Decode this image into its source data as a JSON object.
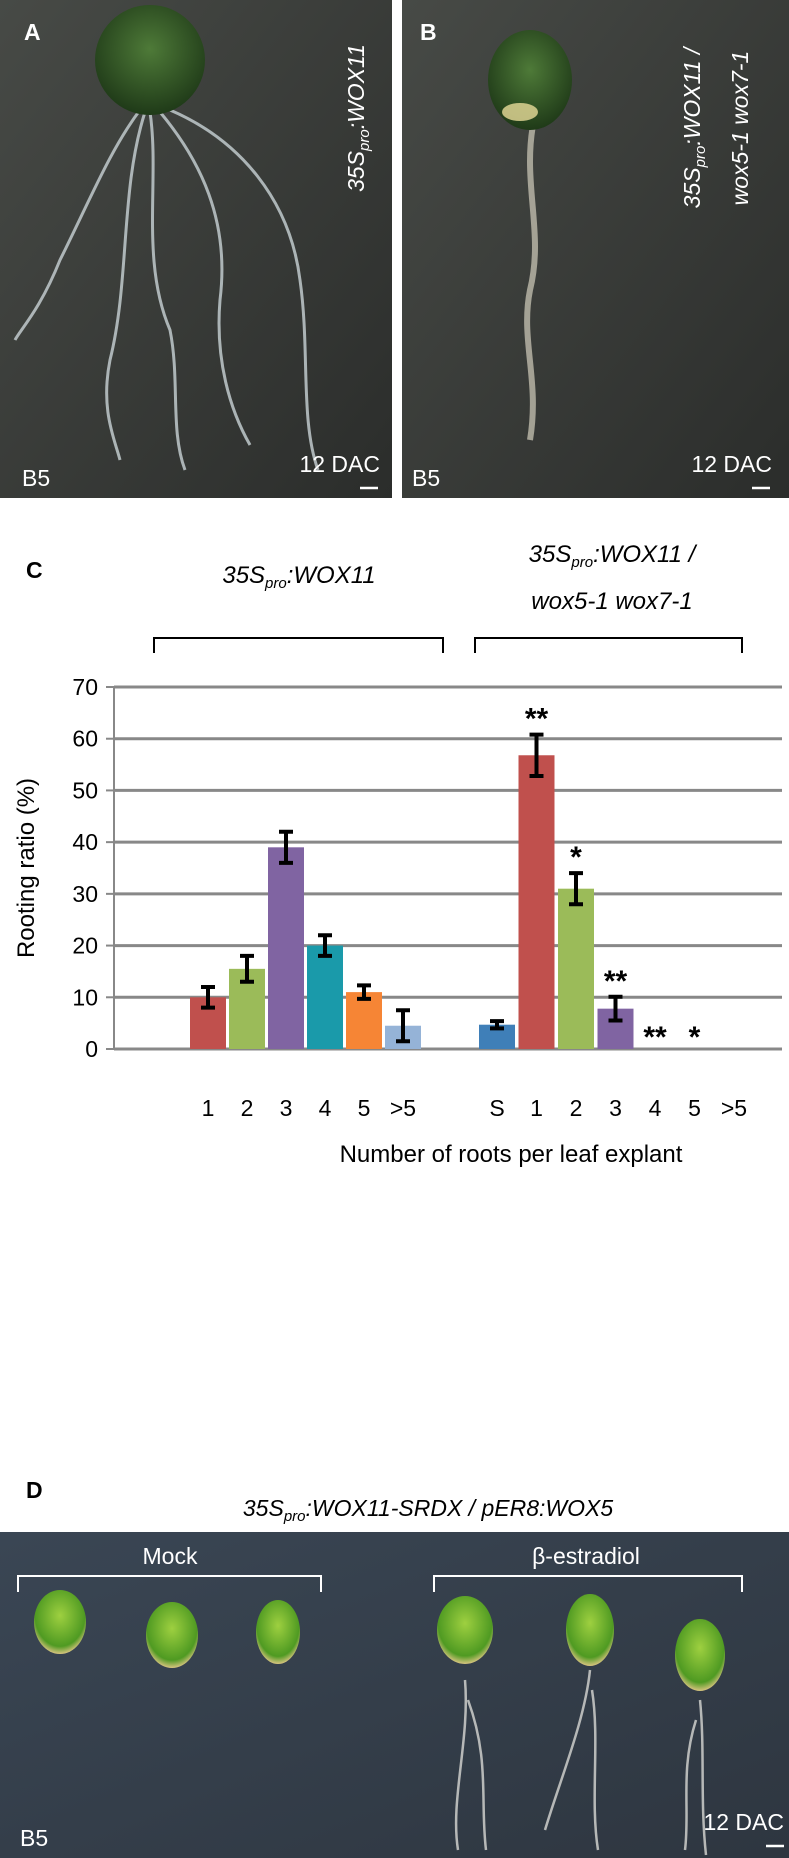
{
  "panel_a": {
    "label": "A",
    "genotype": [
      "35S",
      "pro",
      ":WOX11"
    ],
    "medium": "B5",
    "time": "12 DAC"
  },
  "panel_b": {
    "label": "B",
    "genotype_line1": [
      "35S",
      "pro",
      ":WOX11 /"
    ],
    "genotype_line2": "wox5-1 wox7-1",
    "medium": "B5",
    "time": "12 DAC"
  },
  "chart_data": {
    "type": "bar",
    "label": "C",
    "ylabel": "Rooting ratio (%)",
    "xlabel": "Number of roots per leaf explant",
    "ylim": [
      0,
      70
    ],
    "yticks": [
      0,
      10,
      20,
      30,
      40,
      50,
      60,
      70
    ],
    "grid": true,
    "groups": [
      {
        "title": [
          [
            "35S",
            "pro",
            ":WOX11"
          ]
        ],
        "categories": [
          "1",
          "2",
          "3",
          "4",
          "5",
          ">5"
        ],
        "values": [
          10,
          15.5,
          39,
          20,
          11,
          4.5
        ],
        "errors": [
          2,
          2.5,
          3,
          2,
          1.3,
          3
        ],
        "colors": [
          "#c0504d",
          "#9bbb59",
          "#8064a2",
          "#1a9aaa",
          "#f68535",
          "#95b3d7"
        ],
        "annotations": [
          null,
          null,
          null,
          null,
          null,
          null
        ]
      },
      {
        "title": [
          [
            "35S",
            "pro",
            ":WOX11 /"
          ],
          [
            "wox5-1 wox7-1"
          ]
        ],
        "categories": [
          "S",
          "1",
          "2",
          "3",
          "4",
          "5",
          ">5"
        ],
        "values": [
          4.7,
          56.8,
          31,
          7.8,
          0,
          0,
          0
        ],
        "errors": [
          0.7,
          4,
          3,
          2.3,
          null,
          null,
          null
        ],
        "colors": [
          "#3f7fb8",
          "#c0504d",
          "#9bbb59",
          "#8064a2",
          "#1a9aaa",
          "#f68535",
          "#95b3d7"
        ],
        "annotations": [
          null,
          "**",
          "*",
          "**",
          "**",
          "*",
          null
        ]
      }
    ]
  },
  "panel_d": {
    "label": "D",
    "title": [
      "35S",
      "pro",
      ":WOX11-SRDX / pER8:WOX5"
    ],
    "treatments": [
      "Mock",
      "β-estradiol"
    ],
    "medium": "B5",
    "time": "12 DAC"
  }
}
